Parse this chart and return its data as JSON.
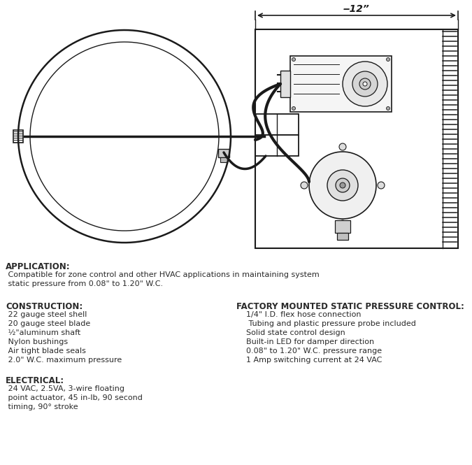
{
  "bg_color": "#ffffff",
  "line_color": "#1a1a1a",
  "text_color": "#2a2a2a",
  "application_header": "APPLICATION:",
  "application_text1": " Compatible for zone control and other HVAC applications in maintaining system",
  "application_text2": " static pressure from 0.08\" to 1.20\" W.C.",
  "construction_header": "CONSTRUCTION:",
  "construction_items": [
    " 22 gauge steel shell",
    " 20 gauge steel blade",
    " ½\"aluminum shaft",
    " Nylon bushings",
    " Air tight blade seals",
    " 2.0\" W.C. maximum pressure"
  ],
  "factory_header": "FACTORY MOUNTED STATIC PRESSURE CONTROL:",
  "factory_items": [
    "    1/4\" I.D. flex hose connection",
    "     Tubing and plastic pressure probe included",
    "    Solid state control design",
    "    Built-in LED for damper direction",
    "    0.08\" to 1.20\" W.C. pressure range",
    "    1 Amp switching current at 24 VAC"
  ],
  "electrical_header": "ELECTRICAL:",
  "electrical_text1": " 24 VAC, 2.5VA, 3-wire floating",
  "electrical_text2": " point actuator, 45 in-lb, 90 second",
  "electrical_text3": " timing, 90° stroke",
  "dim_label": "‒12”"
}
